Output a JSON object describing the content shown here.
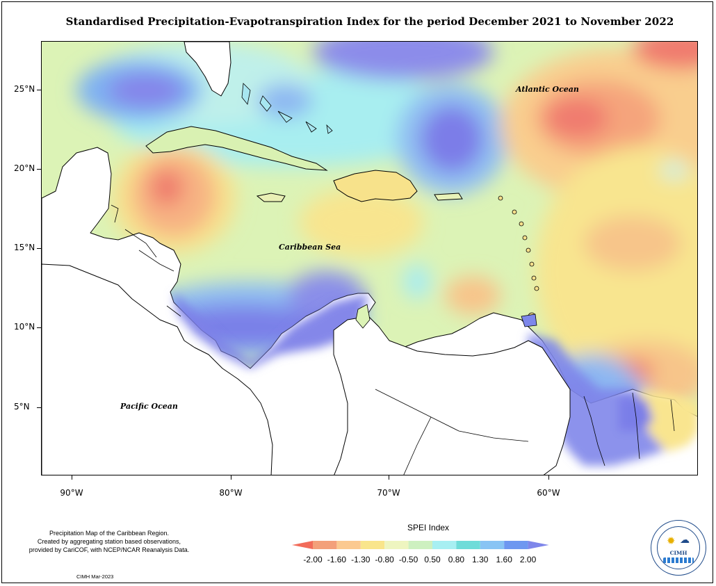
{
  "title": "Standardised Precipitation-Evapotranspiration Index for the period December 2021 to November 2022",
  "axes": {
    "y_ticks": [
      "25°N",
      "20°N",
      "15°N",
      "10°N",
      "5°N"
    ],
    "x_ticks": [
      "90°W",
      "80°W",
      "70°W",
      "60°W"
    ]
  },
  "map_labels": {
    "atlantic": "Atlantic Ocean",
    "caribbean": "Caribbean Sea",
    "pacific": "Pacific Ocean"
  },
  "notes": {
    "line1": "Precipitation Map of the Caribbean Region.",
    "line2": "Created by aggregating station based observations,",
    "line3": "provided by CariCOF, with NCEP/NCAR Reanalysis Data."
  },
  "credit": "CIMH Mar-2023",
  "legend": {
    "title": "SPEI Index",
    "labels": [
      "-2.00",
      "-1.60",
      "-1.30",
      "-0.80",
      "-0.50",
      "0.50",
      "0.80",
      "1.30",
      "1.60",
      "2.00"
    ],
    "colors": [
      "#f26c5a",
      "#f3a07a",
      "#fbc990",
      "#f9e58b",
      "#eef5c0",
      "#cdf0c0",
      "#a7eff2",
      "#6fdcd9",
      "#89c4f4",
      "#6e97f0",
      "#7e86ea"
    ]
  },
  "logo": {
    "abbr": "CIMH"
  }
}
